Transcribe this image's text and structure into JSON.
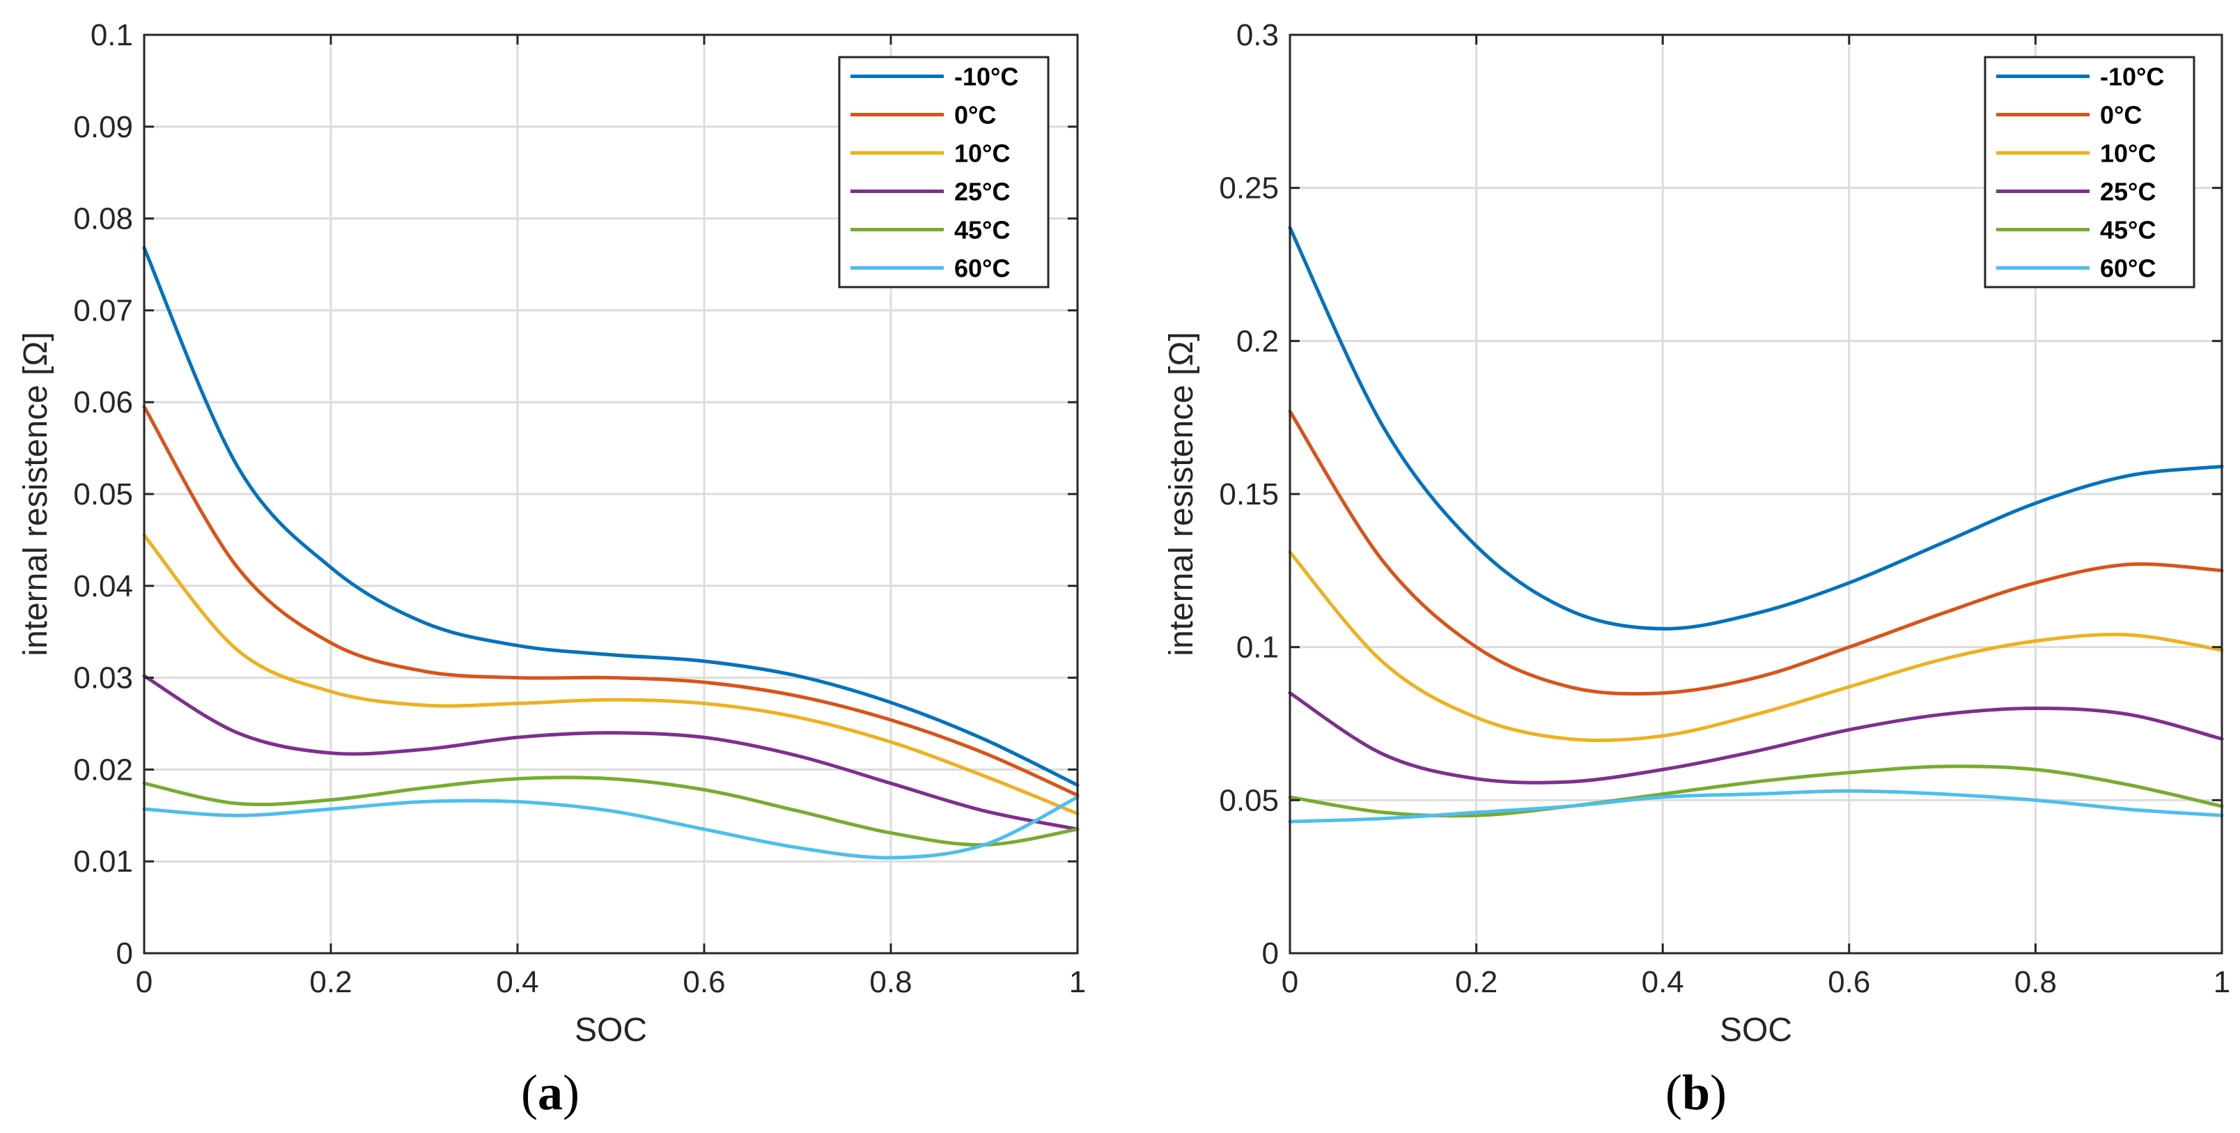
{
  "chart_data": [
    {
      "type": "line",
      "panel_label": "a",
      "xlabel": "SOC",
      "ylabel": "internal resistence [Ω]",
      "xlim": [
        0,
        1
      ],
      "ylim": [
        0,
        0.1
      ],
      "xticks": [
        0,
        0.2,
        0.4,
        0.6,
        0.8,
        1
      ],
      "xtick_labels": [
        "0",
        "0.2",
        "0.4",
        "0.6",
        "0.8",
        "1"
      ],
      "yticks": [
        0,
        0.01,
        0.02,
        0.03,
        0.04,
        0.05,
        0.06,
        0.07,
        0.08,
        0.09,
        0.1
      ],
      "ytick_labels": [
        "0",
        "0.01",
        "0.02",
        "0.03",
        "0.04",
        "0.05",
        "0.06",
        "0.07",
        "0.08",
        "0.09",
        "0.1"
      ],
      "grid": true,
      "legend_position": "top-right",
      "x": [
        0,
        0.1,
        0.2,
        0.3,
        0.4,
        0.5,
        0.6,
        0.7,
        0.8,
        0.9,
        1.0
      ],
      "series": [
        {
          "name": "-10°C",
          "color": "#0072BD",
          "values": [
            0.0768,
            0.053,
            0.042,
            0.036,
            0.0335,
            0.0325,
            0.0318,
            0.0302,
            0.0273,
            0.0233,
            0.0183
          ]
        },
        {
          "name": "0°C",
          "color": "#D95319",
          "values": [
            0.0595,
            0.042,
            0.0338,
            0.0307,
            0.03,
            0.03,
            0.0295,
            0.028,
            0.0254,
            0.0218,
            0.0172
          ]
        },
        {
          "name": "10°C",
          "color": "#EDB120",
          "values": [
            0.0455,
            0.033,
            0.0285,
            0.027,
            0.0272,
            0.0276,
            0.0272,
            0.0257,
            0.023,
            0.0193,
            0.0152
          ]
        },
        {
          "name": "25°C",
          "color": "#7E2F8E",
          "values": [
            0.0302,
            0.024,
            0.0218,
            0.0222,
            0.0235,
            0.024,
            0.0235,
            0.0215,
            0.0185,
            0.0155,
            0.0135
          ]
        },
        {
          "name": "45°C",
          "color": "#77AC30",
          "values": [
            0.0185,
            0.0163,
            0.0167,
            0.018,
            0.019,
            0.019,
            0.0178,
            0.0155,
            0.0131,
            0.0118,
            0.0135
          ]
        },
        {
          "name": "60°C",
          "color": "#4DBEEE",
          "values": [
            0.0157,
            0.015,
            0.0157,
            0.0165,
            0.0165,
            0.0155,
            0.0135,
            0.0115,
            0.0104,
            0.0118,
            0.017
          ]
        }
      ]
    },
    {
      "type": "line",
      "panel_label": "b",
      "xlabel": "SOC",
      "ylabel": "internal resistence [Ω]",
      "xlim": [
        0,
        1
      ],
      "ylim": [
        0,
        0.3
      ],
      "xticks": [
        0,
        0.2,
        0.4,
        0.6,
        0.8,
        1
      ],
      "xtick_labels": [
        "0",
        "0.2",
        "0.4",
        "0.6",
        "0.8",
        "1"
      ],
      "yticks": [
        0,
        0.05,
        0.1,
        0.15,
        0.2,
        0.25,
        0.3
      ],
      "ytick_labels": [
        "0",
        "0.05",
        "0.1",
        "0.15",
        "0.2",
        "0.25",
        "0.3"
      ],
      "grid": true,
      "legend_position": "top-right",
      "x": [
        0,
        0.1,
        0.2,
        0.3,
        0.4,
        0.5,
        0.6,
        0.7,
        0.8,
        0.9,
        1.0
      ],
      "series": [
        {
          "name": "-10°C",
          "color": "#0072BD",
          "values": [
            0.237,
            0.172,
            0.133,
            0.112,
            0.106,
            0.111,
            0.121,
            0.134,
            0.147,
            0.156,
            0.159
          ]
        },
        {
          "name": "0°C",
          "color": "#D95319",
          "values": [
            0.177,
            0.128,
            0.1,
            0.087,
            0.085,
            0.09,
            0.1,
            0.111,
            0.121,
            0.127,
            0.125
          ]
        },
        {
          "name": "10°C",
          "color": "#EDB120",
          "values": [
            0.131,
            0.095,
            0.077,
            0.07,
            0.071,
            0.078,
            0.087,
            0.096,
            0.102,
            0.104,
            0.099
          ]
        },
        {
          "name": "25°C",
          "color": "#7E2F8E",
          "values": [
            0.085,
            0.065,
            0.057,
            0.056,
            0.06,
            0.066,
            0.073,
            0.078,
            0.08,
            0.078,
            0.07
          ]
        },
        {
          "name": "45°C",
          "color": "#77AC30",
          "values": [
            0.051,
            0.046,
            0.045,
            0.048,
            0.052,
            0.056,
            0.059,
            0.061,
            0.06,
            0.055,
            0.048
          ]
        },
        {
          "name": "60°C",
          "color": "#4DBEEE",
          "values": [
            0.043,
            0.044,
            0.046,
            0.048,
            0.051,
            0.052,
            0.053,
            0.052,
            0.05,
            0.047,
            0.045
          ]
        }
      ]
    }
  ]
}
